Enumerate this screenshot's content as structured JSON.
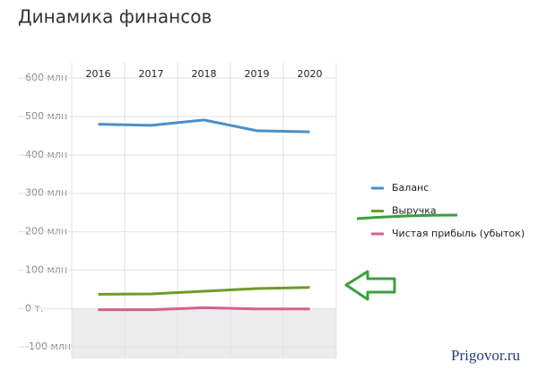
{
  "chart_data": {
    "type": "line",
    "title": "Динамика финансов",
    "categories": [
      "2016",
      "2017",
      "2018",
      "2019",
      "2020"
    ],
    "series": [
      {
        "name": "Баланс",
        "color": "#4a90c8",
        "values": [
          480,
          477,
          491,
          463,
          460
        ]
      },
      {
        "name": "Выручка",
        "color": "#6f9a2c",
        "values": [
          37,
          38,
          45,
          52,
          55
        ]
      },
      {
        "name": "Чистая прибыль (убыток)",
        "color": "#d0628f",
        "values": [
          -3,
          -3,
          2,
          -1,
          -1
        ]
      }
    ],
    "ylim": [
      -130,
      640
    ],
    "yticks": [
      {
        "value": -100,
        "label": "-100 млн"
      },
      {
        "value": 0,
        "label": "0 т."
      },
      {
        "value": 100,
        "label": "100 млн"
      },
      {
        "value": 200,
        "label": "200 млн"
      },
      {
        "value": 300,
        "label": "300 млн"
      },
      {
        "value": 400,
        "label": "400 млн"
      },
      {
        "value": 500,
        "label": "500 млн"
      },
      {
        "value": 600,
        "label": "600 млн"
      }
    ],
    "grid": true,
    "legend": "right",
    "watermark": "Prigovor.ru"
  }
}
